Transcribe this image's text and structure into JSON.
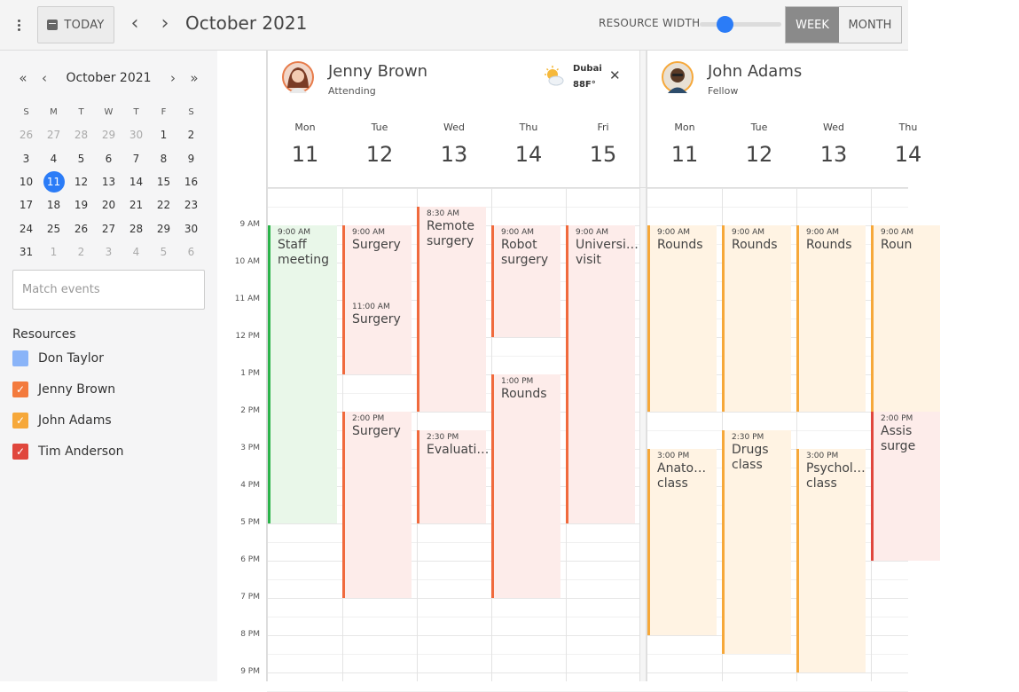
{
  "toolbar": {
    "today_label": "TODAY",
    "title": "October 2021",
    "resource_width_label": "RESOURCE WIDTH",
    "resource_width_value": 0.26,
    "week_label": "WEEK",
    "month_label": "MONTH",
    "active_view": "WEEK",
    "prev_icon": "chevron-left",
    "next_icon": "chevron-right",
    "menu_icon": "kebab-menu"
  },
  "mini_calendar": {
    "title": "October 2021",
    "weekdays": [
      "S",
      "M",
      "T",
      "W",
      "T",
      "F",
      "S"
    ],
    "weeks": [
      [
        "26",
        "27",
        "28",
        "29",
        "30",
        "1",
        "2"
      ],
      [
        "3",
        "4",
        "5",
        "6",
        "7",
        "8",
        "9"
      ],
      [
        "10",
        "11",
        "12",
        "13",
        "14",
        "15",
        "16"
      ],
      [
        "17",
        "18",
        "19",
        "20",
        "21",
        "22",
        "23"
      ],
      [
        "24",
        "25",
        "26",
        "27",
        "28",
        "29",
        "30"
      ],
      [
        "31",
        "1",
        "2",
        "3",
        "4",
        "5",
        "6"
      ]
    ],
    "selected": "11",
    "selected_color": "#2b7cf7"
  },
  "search": {
    "placeholder": "Match events",
    "value": ""
  },
  "resources_title": "Resources",
  "resources": [
    {
      "name": "Don Taylor",
      "checked": false,
      "color": "#8ab4f8"
    },
    {
      "name": "Jenny Brown",
      "checked": true,
      "color": "#f37a3d"
    },
    {
      "name": "John Adams",
      "checked": true,
      "color": "#f6a83a"
    },
    {
      "name": "Tim Anderson",
      "checked": true,
      "color": "#e0473d"
    }
  ],
  "time_labels": [
    "9 AM",
    "10 AM",
    "11 AM",
    "12 PM",
    "1 PM",
    "2 PM",
    "3 PM",
    "4 PM",
    "5 PM",
    "6 PM",
    "7 PM",
    "8 PM",
    "9 PM"
  ],
  "scheduler": {
    "blocks": [
      {
        "name": "Jenny Brown",
        "role": "Attending",
        "weather": {
          "city": "Dubai",
          "temp": "88F°",
          "icon": "partly-sunny-icon"
        },
        "close_icon": "close-icon",
        "days": [
          {
            "name": "Mon",
            "num": "11"
          },
          {
            "name": "Tue",
            "num": "12"
          },
          {
            "name": "Wed",
            "num": "13"
          },
          {
            "name": "Thu",
            "num": "14"
          },
          {
            "name": "Fri",
            "num": "15"
          }
        ],
        "events": [
          {
            "day": 0,
            "start": 9,
            "end": 17,
            "time": "9:00 AM",
            "title": "Staff meeting",
            "bg": "#e9f7e9",
            "bar": "#2bb34a"
          },
          {
            "day": 1,
            "start": 9,
            "end": 11,
            "time": "9:00 AM",
            "title": "Surgery",
            "bg": "#fdecea",
            "bar": "#f06a3d"
          },
          {
            "day": 1,
            "start": 11,
            "end": 13,
            "time": "11:00 AM",
            "title": "Surgery",
            "bg": "#fdecea",
            "bar": "#f06a3d"
          },
          {
            "day": 1,
            "start": 14,
            "end": 19,
            "time": "2:00 PM",
            "title": "Surgery",
            "bg": "#fdecea",
            "bar": "#f06a3d"
          },
          {
            "day": 2,
            "start": 8.5,
            "end": 14,
            "time": "8:30 AM",
            "title": "Remote surgery",
            "bg": "#fdecea",
            "bar": "#f06a3d"
          },
          {
            "day": 2,
            "start": 14.5,
            "end": 17,
            "time": "2:30 PM",
            "title": "Evaluati…",
            "bg": "#fdecea",
            "bar": "#f06a3d"
          },
          {
            "day": 3,
            "start": 9,
            "end": 12,
            "time": "9:00 AM",
            "title": "Robot surgery",
            "bg": "#fdecea",
            "bar": "#f06a3d"
          },
          {
            "day": 3,
            "start": 13,
            "end": 19,
            "time": "1:00 PM",
            "title": "Rounds",
            "bg": "#fdecea",
            "bar": "#f06a3d"
          },
          {
            "day": 4,
            "start": 9,
            "end": 17,
            "time": "9:00 AM",
            "title": "Universi… visit",
            "bg": "#fdecea",
            "bar": "#f06a3d"
          }
        ]
      },
      {
        "name": "John Adams",
        "role": "Fellow",
        "days": [
          {
            "name": "Mon",
            "num": "11"
          },
          {
            "name": "Tue",
            "num": "12"
          },
          {
            "name": "Wed",
            "num": "13"
          },
          {
            "name": "Thu",
            "num": "14"
          }
        ],
        "events": [
          {
            "day": 0,
            "start": 9,
            "end": 14,
            "time": "9:00 AM",
            "title": "Rounds",
            "bg": "#fff3e3",
            "bar": "#f6a83a"
          },
          {
            "day": 0,
            "start": 15,
            "end": 20,
            "time": "3:00 PM",
            "title": "Anato… class",
            "bg": "#fff3e3",
            "bar": "#f6a83a"
          },
          {
            "day": 1,
            "start": 9,
            "end": 14,
            "time": "9:00 AM",
            "title": "Rounds",
            "bg": "#fff3e3",
            "bar": "#f6a83a"
          },
          {
            "day": 1,
            "start": 14.5,
            "end": 20.5,
            "time": "2:30 PM",
            "title": "Drugs class",
            "bg": "#fff3e3",
            "bar": "#f6a83a"
          },
          {
            "day": 2,
            "start": 9,
            "end": 14,
            "time": "9:00 AM",
            "title": "Rounds",
            "bg": "#fff3e3",
            "bar": "#f6a83a"
          },
          {
            "day": 2,
            "start": 15,
            "end": 21,
            "time": "3:00 PM",
            "title": "Psychol… class",
            "bg": "#fff3e3",
            "bar": "#f6a83a"
          },
          {
            "day": 3,
            "start": 9,
            "end": 14,
            "time": "9:00 AM",
            "title": "Roun",
            "bg": "#fff3e3",
            "bar": "#f6a83a"
          },
          {
            "day": 3,
            "start": 14,
            "end": 18,
            "time": "2:00 PM",
            "title": "Assis surge",
            "bg": "#fdecea",
            "bar": "#e0473d"
          }
        ]
      }
    ]
  }
}
